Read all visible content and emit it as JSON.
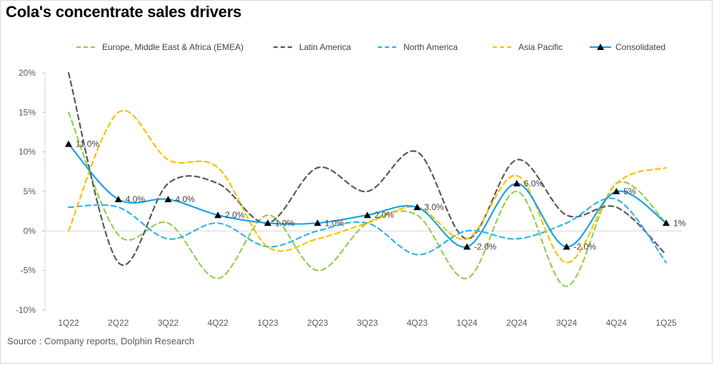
{
  "title": "Cola's concentrate sales  drivers",
  "source": "Source : Company reports, Dolphin Research",
  "chart_data": {
    "type": "line",
    "categories": [
      "1Q22",
      "2Q22",
      "3Q22",
      "4Q22",
      "1Q23",
      "2Q23",
      "3Q23",
      "4Q23",
      "1Q24",
      "2Q24",
      "3Q24",
      "4Q24",
      "1Q25"
    ],
    "ylim": [
      -10,
      20
    ],
    "yticks": [
      -10,
      -5,
      0,
      5,
      10,
      15,
      20
    ],
    "ytick_labels": [
      "-10%",
      "-5%",
      "0%",
      "5%",
      "10%",
      "15%",
      "20%"
    ],
    "grid": false,
    "legend_position": "top",
    "series": [
      {
        "name": "Europe, Middle East & Africa (EMEA)",
        "color": "#92d050",
        "style": "dashed",
        "values": [
          15,
          -0.5,
          1,
          -6,
          2,
          -5,
          1,
          2,
          -6,
          5,
          -7,
          6,
          1
        ]
      },
      {
        "name": "Latin America",
        "color": "#595959",
        "style": "dashed",
        "values": [
          20,
          -4,
          6,
          6,
          1,
          8,
          5,
          10,
          -1,
          9,
          2,
          3,
          -3
        ]
      },
      {
        "name": "North America",
        "color": "#33b5e5",
        "style": "dashed",
        "values": [
          3,
          3,
          -1,
          1,
          -2,
          0,
          1,
          -3,
          0,
          -1,
          1,
          4,
          -4
        ]
      },
      {
        "name": "Asia Pacific",
        "color": "#ffc000",
        "style": "dashed",
        "values": [
          0,
          15,
          9,
          8,
          -2,
          -1,
          1,
          3,
          -1,
          7,
          -4,
          6,
          8
        ]
      },
      {
        "name": "Consolidated",
        "color": "#1ba1e2",
        "style": "solid",
        "marker": "triangle",
        "values": [
          11,
          4,
          4,
          2,
          1,
          1,
          2,
          3,
          -2,
          6,
          -2,
          5,
          1
        ],
        "data_labels": [
          "11.0%",
          "4.0%",
          "4.0%",
          "2.0%",
          "1.0%",
          "1.0%",
          "2.0%",
          "3.0%",
          "-2.0%",
          "6.0%",
          "-2.0%",
          "5%",
          "1%"
        ]
      }
    ]
  }
}
